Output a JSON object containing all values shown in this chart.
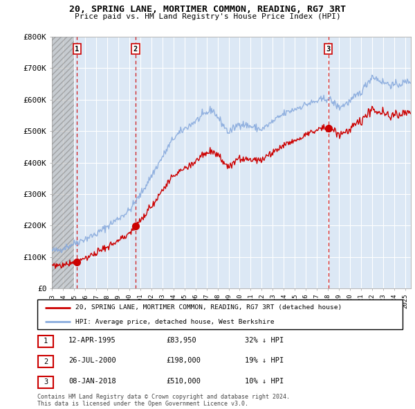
{
  "title": "20, SPRING LANE, MORTIMER COMMON, READING, RG7 3RT",
  "subtitle": "Price paid vs. HM Land Registry's House Price Index (HPI)",
  "ylim": [
    0,
    800000
  ],
  "yticks": [
    0,
    100000,
    200000,
    300000,
    400000,
    500000,
    600000,
    700000,
    800000
  ],
  "ytick_labels": [
    "£0",
    "£100K",
    "£200K",
    "£300K",
    "£400K",
    "£500K",
    "£600K",
    "£700K",
    "£800K"
  ],
  "sale_prices": [
    83950,
    198000,
    510000
  ],
  "sale_date_nums": [
    1995.28,
    2000.57,
    2018.03
  ],
  "sale_labels": [
    "1",
    "2",
    "3"
  ],
  "sale_color": "#cc0000",
  "hpi_color": "#88aadd",
  "dashed_line_color": "#cc0000",
  "chart_bg_color": "#dce8f5",
  "hatch_bg_color": "#c8c8c8",
  "grid_color": "#ffffff",
  "legend_line1": "20, SPRING LANE, MORTIMER COMMON, READING, RG7 3RT (detached house)",
  "legend_line2": "HPI: Average price, detached house, West Berkshire",
  "table_entries": [
    {
      "label": "1",
      "date": "12-APR-1995",
      "price": "£83,950",
      "hpi": "32% ↓ HPI"
    },
    {
      "label": "2",
      "date": "26-JUL-2000",
      "price": "£198,000",
      "hpi": "19% ↓ HPI"
    },
    {
      "label": "3",
      "date": "08-JAN-2018",
      "price": "£510,000",
      "hpi": "10% ↓ HPI"
    }
  ],
  "footer": "Contains HM Land Registry data © Crown copyright and database right 2024.\nThis data is licensed under the Open Government Licence v3.0.",
  "xlim_start": 1993.0,
  "xlim_end": 2025.5,
  "hatch_end": 1995.0
}
